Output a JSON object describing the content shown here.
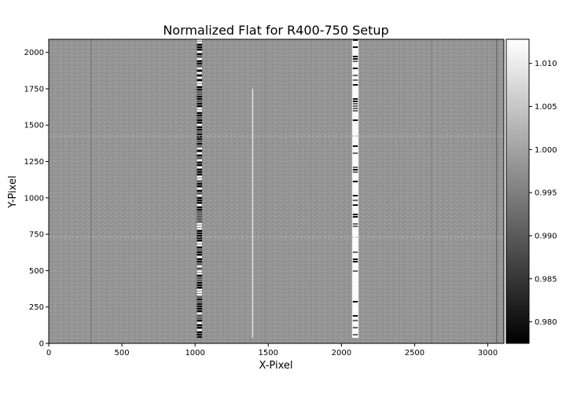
{
  "chart_data": {
    "type": "heatmap",
    "title": "Normalized Flat for R400-750 Setup",
    "xlabel": "X-Pixel",
    "ylabel": "Y-Pixel",
    "xlim": [
      0,
      3110
    ],
    "ylim": [
      0,
      2090
    ],
    "xticks": [
      0,
      500,
      1000,
      1500,
      2000,
      2500,
      3000
    ],
    "yticks": [
      0,
      250,
      500,
      750,
      1000,
      1250,
      1500,
      1750,
      2000
    ],
    "colorbar": {
      "colormap": "gray",
      "range": [
        0.9775,
        1.0128
      ],
      "ticks": [
        "0.980",
        "0.985",
        "0.990",
        "0.995",
        "1.000",
        "1.005",
        "1.010"
      ],
      "tick_values": [
        0.98,
        0.985,
        0.99,
        0.995,
        1.0,
        1.005,
        1.01
      ]
    },
    "background_value": 1.0,
    "features": [
      {
        "kind": "column-band",
        "x": 1030,
        "width": 45,
        "ymin": 40,
        "ymax": 2090,
        "pattern": "black-white stripes"
      },
      {
        "kind": "column-band",
        "x": 2095,
        "width": 45,
        "ymin": 40,
        "ymax": 2090,
        "pattern": "white with dark stripes"
      },
      {
        "kind": "column-line",
        "x": 1393,
        "ymin": 40,
        "ymax": 1750,
        "value": 1.008
      },
      {
        "kind": "column-line",
        "x": 1478,
        "ymin": 0,
        "ymax": 2090,
        "value": 0.997
      },
      {
        "kind": "column-line",
        "x": 2615,
        "ymin": 0,
        "ymax": 2090,
        "value": 0.996
      },
      {
        "kind": "column-line",
        "x": 290,
        "ymin": 0,
        "ymax": 2090,
        "value": 0.995
      },
      {
        "kind": "column-line",
        "x": 3060,
        "ymin": 0,
        "ymax": 2090,
        "value": 0.993
      },
      {
        "kind": "row-line",
        "y": 730,
        "xmin": 0,
        "xmax": 3110,
        "value": 1.003
      },
      {
        "kind": "row-line",
        "y": 1425,
        "xmin": 0,
        "xmax": 3110,
        "value": 1.002
      }
    ]
  }
}
